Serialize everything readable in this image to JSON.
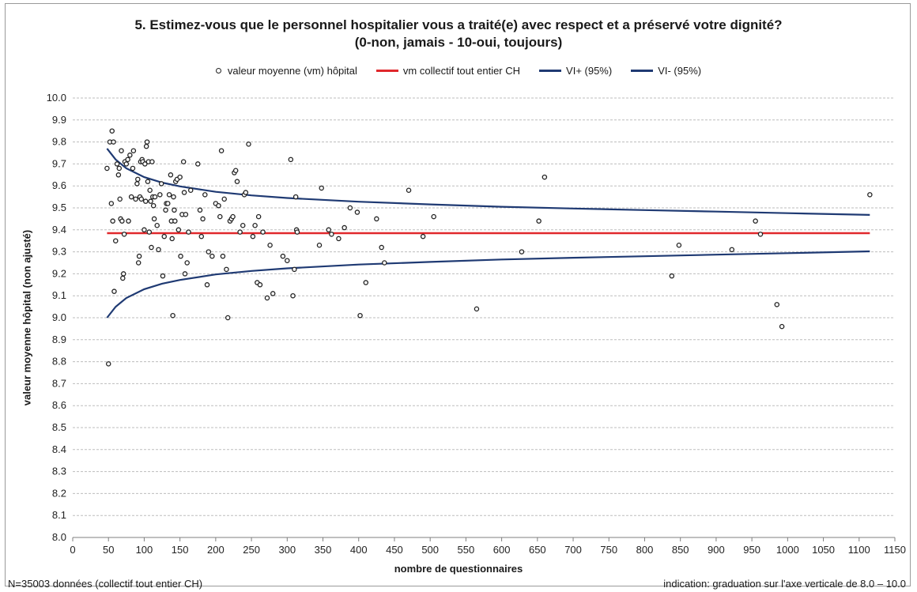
{
  "chart_data": {
    "type": "scatter",
    "title_line1": "5. Estimez-vous que le personnel hospitalier vous a traité(e) avec respect et a préservé votre dignité?",
    "title_line2": "(0-non, jamais - 10-oui, toujours)",
    "xlabel": "nombre de questionnaires",
    "ylabel": "valeur moyenne hôpital (non ajusté)",
    "xlim": [
      0,
      1150
    ],
    "ylim": [
      8.0,
      10.0
    ],
    "x_ticks": [
      0,
      50,
      100,
      150,
      200,
      250,
      300,
      350,
      400,
      450,
      500,
      550,
      600,
      650,
      700,
      750,
      800,
      850,
      900,
      950,
      1000,
      1050,
      1100,
      1150
    ],
    "y_ticks": [
      "8.0",
      "8.1",
      "8.2",
      "8.3",
      "8.4",
      "8.5",
      "8.6",
      "8.7",
      "8.8",
      "8.9",
      "9.0",
      "9.1",
      "9.2",
      "9.3",
      "9.4",
      "9.5",
      "9.6",
      "9.7",
      "9.8",
      "9.9",
      "10.0"
    ],
    "grid": true,
    "legend_position": "top",
    "colors": {
      "points": "#222222",
      "mean": "#e0282c",
      "ci": "#1f3a73",
      "grid": "#bdbdbd"
    },
    "series": [
      {
        "name": "valeur moyenne (vm) hôpital",
        "kind": "points",
        "points": [
          [
            48,
            9.68
          ],
          [
            50,
            8.79
          ],
          [
            52,
            9.8
          ],
          [
            54,
            9.52
          ],
          [
            55,
            9.85
          ],
          [
            56,
            9.44
          ],
          [
            57,
            9.8
          ],
          [
            58,
            9.12
          ],
          [
            60,
            9.35
          ],
          [
            62,
            9.7
          ],
          [
            64,
            9.65
          ],
          [
            65,
            9.68
          ],
          [
            66,
            9.54
          ],
          [
            67,
            9.45
          ],
          [
            68,
            9.76
          ],
          [
            69,
            9.44
          ],
          [
            70,
            9.18
          ],
          [
            71,
            9.2
          ],
          [
            72,
            9.38
          ],
          [
            73,
            9.71
          ],
          [
            75,
            9.7
          ],
          [
            77,
            9.72
          ],
          [
            78,
            9.44
          ],
          [
            80,
            9.74
          ],
          [
            82,
            9.55
          ],
          [
            84,
            9.68
          ],
          [
            85,
            9.76
          ],
          [
            88,
            9.54
          ],
          [
            90,
            9.61
          ],
          [
            91,
            9.63
          ],
          [
            92,
            9.25
          ],
          [
            93,
            9.28
          ],
          [
            94,
            9.55
          ],
          [
            95,
            9.71
          ],
          [
            96,
            9.54
          ],
          [
            97,
            9.72
          ],
          [
            98,
            9.71
          ],
          [
            100,
            9.4
          ],
          [
            101,
            9.7
          ],
          [
            102,
            9.53
          ],
          [
            103,
            9.78
          ],
          [
            104,
            9.8
          ],
          [
            105,
            9.62
          ],
          [
            106,
            9.71
          ],
          [
            107,
            9.39
          ],
          [
            108,
            9.58
          ],
          [
            109,
            9.53
          ],
          [
            110,
            9.32
          ],
          [
            111,
            9.71
          ],
          [
            112,
            9.55
          ],
          [
            113,
            9.51
          ],
          [
            114,
            9.45
          ],
          [
            115,
            9.55
          ],
          [
            118,
            9.42
          ],
          [
            120,
            9.31
          ],
          [
            122,
            9.56
          ],
          [
            124,
            9.61
          ],
          [
            126,
            9.19
          ],
          [
            128,
            9.37
          ],
          [
            130,
            9.49
          ],
          [
            131,
            9.52
          ],
          [
            133,
            9.52
          ],
          [
            135,
            9.56
          ],
          [
            137,
            9.65
          ],
          [
            138,
            9.44
          ],
          [
            139,
            9.36
          ],
          [
            140,
            9.01
          ],
          [
            141,
            9.55
          ],
          [
            142,
            9.49
          ],
          [
            143,
            9.44
          ],
          [
            144,
            9.62
          ],
          [
            146,
            9.63
          ],
          [
            148,
            9.4
          ],
          [
            150,
            9.64
          ],
          [
            151,
            9.28
          ],
          [
            153,
            9.47
          ],
          [
            155,
            9.71
          ],
          [
            156,
            9.57
          ],
          [
            157,
            9.2
          ],
          [
            158,
            9.47
          ],
          [
            160,
            9.25
          ],
          [
            162,
            9.39
          ],
          [
            165,
            9.58
          ],
          [
            175,
            9.7
          ],
          [
            178,
            9.49
          ],
          [
            180,
            9.37
          ],
          [
            182,
            9.45
          ],
          [
            185,
            9.56
          ],
          [
            188,
            9.15
          ],
          [
            190,
            9.3
          ],
          [
            195,
            9.28
          ],
          [
            200,
            9.52
          ],
          [
            204,
            9.51
          ],
          [
            206,
            9.46
          ],
          [
            208,
            9.76
          ],
          [
            210,
            9.28
          ],
          [
            212,
            9.54
          ],
          [
            215,
            9.22
          ],
          [
            217,
            9.0
          ],
          [
            220,
            9.44
          ],
          [
            222,
            9.45
          ],
          [
            224,
            9.46
          ],
          [
            226,
            9.66
          ],
          [
            228,
            9.67
          ],
          [
            230,
            9.62
          ],
          [
            234,
            9.39
          ],
          [
            238,
            9.42
          ],
          [
            240,
            9.56
          ],
          [
            242,
            9.57
          ],
          [
            246,
            9.79
          ],
          [
            252,
            9.37
          ],
          [
            255,
            9.42
          ],
          [
            258,
            9.16
          ],
          [
            260,
            9.46
          ],
          [
            262,
            9.15
          ],
          [
            266,
            9.39
          ],
          [
            272,
            9.09
          ],
          [
            276,
            9.33
          ],
          [
            280,
            9.11
          ],
          [
            294,
            9.28
          ],
          [
            300,
            9.26
          ],
          [
            305,
            9.72
          ],
          [
            308,
            9.1
          ],
          [
            310,
            9.22
          ],
          [
            312,
            9.55
          ],
          [
            313,
            9.4
          ],
          [
            314,
            9.39
          ],
          [
            345,
            9.33
          ],
          [
            348,
            9.59
          ],
          [
            358,
            9.4
          ],
          [
            362,
            9.38
          ],
          [
            372,
            9.36
          ],
          [
            380,
            9.41
          ],
          [
            388,
            9.5
          ],
          [
            398,
            9.48
          ],
          [
            402,
            9.01
          ],
          [
            410,
            9.16
          ],
          [
            425,
            9.45
          ],
          [
            432,
            9.32
          ],
          [
            436,
            9.25
          ],
          [
            470,
            9.58
          ],
          [
            490,
            9.37
          ],
          [
            505,
            9.46
          ],
          [
            565,
            9.04
          ],
          [
            628,
            9.3
          ],
          [
            652,
            9.44
          ],
          [
            660,
            9.64
          ],
          [
            838,
            9.19
          ],
          [
            848,
            9.33
          ],
          [
            922,
            9.31
          ],
          [
            955,
            9.44
          ],
          [
            962,
            9.38
          ],
          [
            985,
            9.06
          ],
          [
            992,
            8.96
          ],
          [
            1115,
            9.56
          ]
        ]
      },
      {
        "name": "vm collectif tout entier CH",
        "kind": "hline",
        "value": 9.385,
        "x_range": [
          48,
          1115
        ]
      },
      {
        "name": "VI+ (95%)",
        "kind": "curve",
        "points": [
          [
            48,
            9.77
          ],
          [
            60,
            9.72
          ],
          [
            75,
            9.68
          ],
          [
            100,
            9.64
          ],
          [
            125,
            9.615
          ],
          [
            150,
            9.598
          ],
          [
            200,
            9.573
          ],
          [
            250,
            9.557
          ],
          [
            300,
            9.545
          ],
          [
            400,
            9.528
          ],
          [
            500,
            9.516
          ],
          [
            600,
            9.505
          ],
          [
            700,
            9.497
          ],
          [
            800,
            9.49
          ],
          [
            900,
            9.483
          ],
          [
            1000,
            9.476
          ],
          [
            1115,
            9.468
          ]
        ]
      },
      {
        "name": "VI- (95%)",
        "kind": "curve",
        "points": [
          [
            48,
            9.0
          ],
          [
            60,
            9.05
          ],
          [
            75,
            9.09
          ],
          [
            100,
            9.13
          ],
          [
            125,
            9.155
          ],
          [
            150,
            9.172
          ],
          [
            200,
            9.197
          ],
          [
            250,
            9.213
          ],
          [
            300,
            9.225
          ],
          [
            400,
            9.242
          ],
          [
            500,
            9.254
          ],
          [
            600,
            9.265
          ],
          [
            700,
            9.273
          ],
          [
            800,
            9.28
          ],
          [
            900,
            9.287
          ],
          [
            1000,
            9.294
          ],
          [
            1115,
            9.302
          ]
        ]
      }
    ]
  },
  "footer": {
    "left": "N=35003 données (collectif tout entier CH)",
    "right": "indication: graduation sur l'axe verticale de 8.0 – 10.0"
  }
}
